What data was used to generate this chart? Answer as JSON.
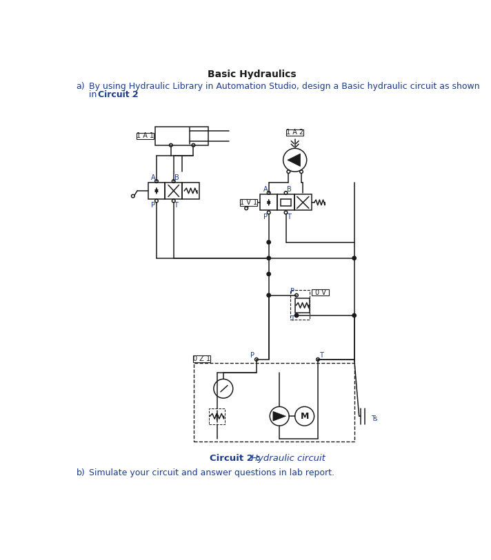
{
  "title": "Basic Hydraulics",
  "q_a_prefix": "a)",
  "q_a_text": "By using Hydraulic Library in Automation Studio, design a Basic hydraulic circuit as shown in Circuit 2.",
  "q_a_bold": "Circuit 2",
  "q_b_prefix": "b)",
  "q_b_text": "Simulate your circuit and answer questions in lab report.",
  "caption_bold": "Circuit 2 :",
  "caption_italic": "Hydraulic circuit",
  "bg_color": "#ffffff",
  "black": "#1a1a1a",
  "blue": "#1a3a8a",
  "gray": "#888888",
  "label_1A1": "1 A 1",
  "label_1A2": "1 A 2",
  "label_1V1": "1 V 1",
  "label_0V": "0 V",
  "label_0Z1": "0 Z 1",
  "label_M": "M",
  "label_Ts": "Ts",
  "label_A": "A",
  "label_B": "B",
  "label_P": "P",
  "label_T": "T"
}
